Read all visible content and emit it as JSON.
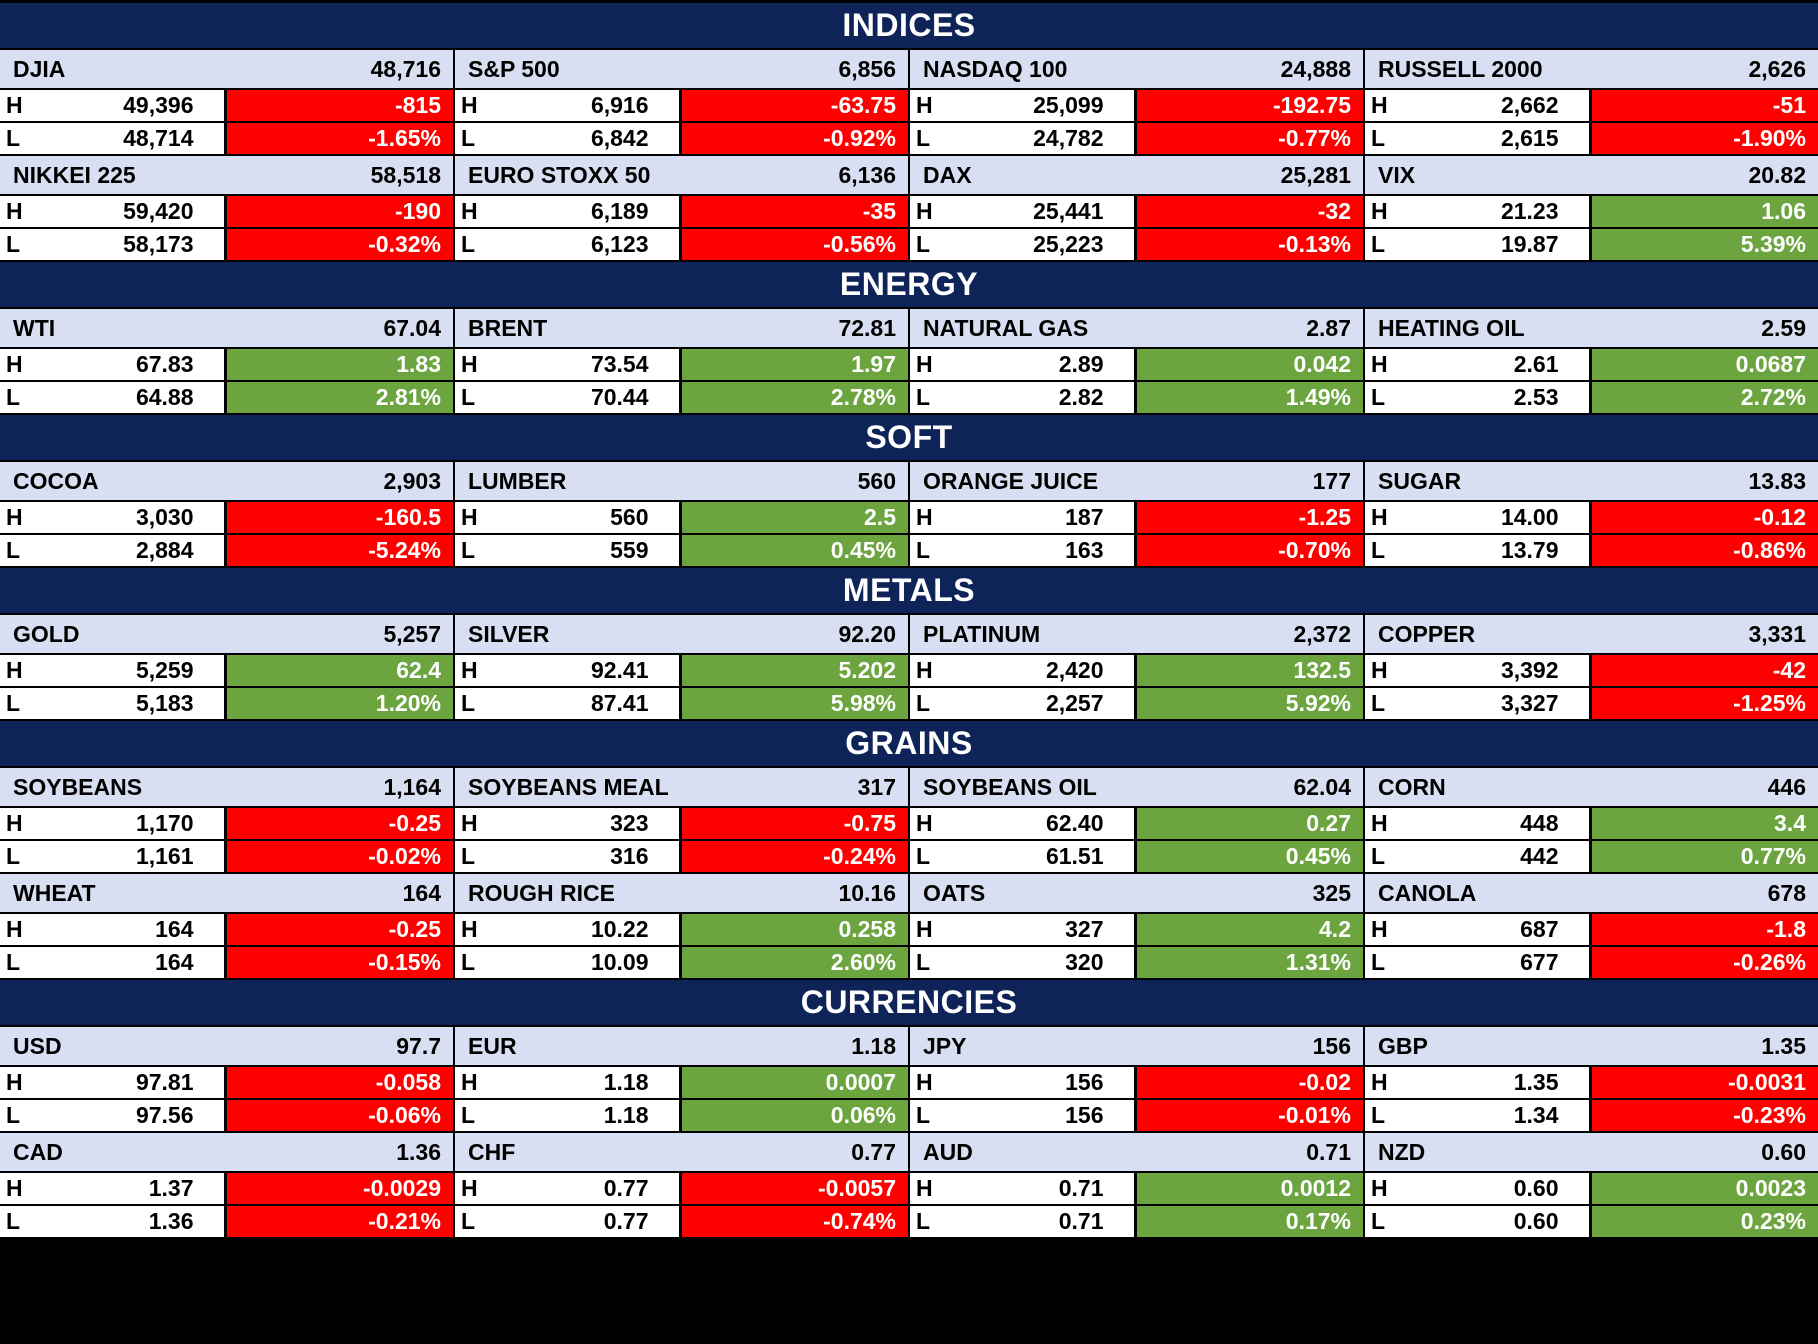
{
  "colors": {
    "section_header_bg": "#0E2357",
    "instrument_header_bg": "#D9DFF2",
    "up_green": "#6CA540",
    "down_red": "#FF0000",
    "cell_bg": "#FFFFFF",
    "grid_line": "#000000"
  },
  "labels": {
    "high": "H",
    "low": "L"
  },
  "sections": [
    {
      "title": "INDICES",
      "rows": [
        [
          {
            "name": "DJIA",
            "last": "48,716",
            "high": "49,396",
            "low": "48,714",
            "change": "-815",
            "change_pct": "-1.65%",
            "direction": "down"
          },
          {
            "name": "S&P 500",
            "last": "6,856",
            "high": "6,916",
            "low": "6,842",
            "change": "-63.75",
            "change_pct": "-0.92%",
            "direction": "down"
          },
          {
            "name": "NASDAQ 100",
            "last": "24,888",
            "high": "25,099",
            "low": "24,782",
            "change": "-192.75",
            "change_pct": "-0.77%",
            "direction": "down"
          },
          {
            "name": "RUSSELL 2000",
            "last": "2,626",
            "high": "2,662",
            "low": "2,615",
            "change": "-51",
            "change_pct": "-1.90%",
            "direction": "down"
          }
        ],
        [
          {
            "name": "NIKKEI 225",
            "last": "58,518",
            "high": "59,420",
            "low": "58,173",
            "change": "-190",
            "change_pct": "-0.32%",
            "direction": "down"
          },
          {
            "name": "EURO STOXX 50",
            "last": "6,136",
            "high": "6,189",
            "low": "6,123",
            "change": "-35",
            "change_pct": "-0.56%",
            "direction": "down"
          },
          {
            "name": "DAX",
            "last": "25,281",
            "high": "25,441",
            "low": "25,223",
            "change": "-32",
            "change_pct": "-0.13%",
            "direction": "down"
          },
          {
            "name": "VIX",
            "last": "20.82",
            "high": "21.23",
            "low": "19.87",
            "change": "1.06",
            "change_pct": "5.39%",
            "direction": "up"
          }
        ]
      ]
    },
    {
      "title": "ENERGY",
      "rows": [
        [
          {
            "name": "WTI",
            "last": "67.04",
            "high": "67.83",
            "low": "64.88",
            "change": "1.83",
            "change_pct": "2.81%",
            "direction": "up"
          },
          {
            "name": "BRENT",
            "last": "72.81",
            "high": "73.54",
            "low": "70.44",
            "change": "1.97",
            "change_pct": "2.78%",
            "direction": "up"
          },
          {
            "name": "NATURAL GAS",
            "last": "2.87",
            "high": "2.89",
            "low": "2.82",
            "change": "0.042",
            "change_pct": "1.49%",
            "direction": "up"
          },
          {
            "name": "HEATING OIL",
            "last": "2.59",
            "high": "2.61",
            "low": "2.53",
            "change": "0.0687",
            "change_pct": "2.72%",
            "direction": "up"
          }
        ]
      ]
    },
    {
      "title": "SOFT",
      "rows": [
        [
          {
            "name": "COCOA",
            "last": "2,903",
            "high": "3,030",
            "low": "2,884",
            "change": "-160.5",
            "change_pct": "-5.24%",
            "direction": "down"
          },
          {
            "name": "LUMBER",
            "last": "560",
            "high": "560",
            "low": "559",
            "change": "2.5",
            "change_pct": "0.45%",
            "direction": "up"
          },
          {
            "name": "ORANGE JUICE",
            "last": "177",
            "high": "187",
            "low": "163",
            "change": "-1.25",
            "change_pct": "-0.70%",
            "direction": "down"
          },
          {
            "name": "SUGAR",
            "last": "13.83",
            "high": "14.00",
            "low": "13.79",
            "change": "-0.12",
            "change_pct": "-0.86%",
            "direction": "down"
          }
        ]
      ]
    },
    {
      "title": "METALS",
      "rows": [
        [
          {
            "name": "GOLD",
            "last": "5,257",
            "high": "5,259",
            "low": "5,183",
            "change": "62.4",
            "change_pct": "1.20%",
            "direction": "up"
          },
          {
            "name": "SILVER",
            "last": "92.20",
            "high": "92.41",
            "low": "87.41",
            "change": "5.202",
            "change_pct": "5.98%",
            "direction": "up"
          },
          {
            "name": "PLATINUM",
            "last": "2,372",
            "high": "2,420",
            "low": "2,257",
            "change": "132.5",
            "change_pct": "5.92%",
            "direction": "up"
          },
          {
            "name": "COPPER",
            "last": "3,331",
            "high": "3,392",
            "low": "3,327",
            "change": "-42",
            "change_pct": "-1.25%",
            "direction": "down"
          }
        ]
      ]
    },
    {
      "title": "GRAINS",
      "rows": [
        [
          {
            "name": "SOYBEANS",
            "last": "1,164",
            "high": "1,170",
            "low": "1,161",
            "change": "-0.25",
            "change_pct": "-0.02%",
            "direction": "down"
          },
          {
            "name": "SOYBEANS MEAL",
            "last": "317",
            "high": "323",
            "low": "316",
            "change": "-0.75",
            "change_pct": "-0.24%",
            "direction": "down"
          },
          {
            "name": "SOYBEANS OIL",
            "last": "62.04",
            "high": "62.40",
            "low": "61.51",
            "change": "0.27",
            "change_pct": "0.45%",
            "direction": "up"
          },
          {
            "name": "CORN",
            "last": "446",
            "high": "448",
            "low": "442",
            "change": "3.4",
            "change_pct": "0.77%",
            "direction": "up"
          }
        ],
        [
          {
            "name": "WHEAT",
            "last": "164",
            "high": "164",
            "low": "164",
            "change": "-0.25",
            "change_pct": "-0.15%",
            "direction": "down"
          },
          {
            "name": "ROUGH RICE",
            "last": "10.16",
            "high": "10.22",
            "low": "10.09",
            "change": "0.258",
            "change_pct": "2.60%",
            "direction": "up"
          },
          {
            "name": "OATS",
            "last": "325",
            "high": "327",
            "low": "320",
            "change": "4.2",
            "change_pct": "1.31%",
            "direction": "up"
          },
          {
            "name": "CANOLA",
            "last": "678",
            "high": "687",
            "low": "677",
            "change": "-1.8",
            "change_pct": "-0.26%",
            "direction": "down"
          }
        ]
      ]
    },
    {
      "title": "CURRENCIES",
      "rows": [
        [
          {
            "name": "USD",
            "last": "97.7",
            "high": "97.81",
            "low": "97.56",
            "change": "-0.058",
            "change_pct": "-0.06%",
            "direction": "down"
          },
          {
            "name": "EUR",
            "last": "1.18",
            "high": "1.18",
            "low": "1.18",
            "change": "0.0007",
            "change_pct": "0.06%",
            "direction": "up"
          },
          {
            "name": "JPY",
            "last": "156",
            "high": "156",
            "low": "156",
            "change": "-0.02",
            "change_pct": "-0.01%",
            "direction": "down"
          },
          {
            "name": "GBP",
            "last": "1.35",
            "high": "1.35",
            "low": "1.34",
            "change": "-0.0031",
            "change_pct": "-0.23%",
            "direction": "down"
          }
        ],
        [
          {
            "name": "CAD",
            "last": "1.36",
            "high": "1.37",
            "low": "1.36",
            "change": "-0.0029",
            "change_pct": "-0.21%",
            "direction": "down"
          },
          {
            "name": "CHF",
            "last": "0.77",
            "high": "0.77",
            "low": "0.77",
            "change": "-0.0057",
            "change_pct": "-0.74%",
            "direction": "down"
          },
          {
            "name": "AUD",
            "last": "0.71",
            "high": "0.71",
            "low": "0.71",
            "change": "0.0012",
            "change_pct": "0.17%",
            "direction": "up"
          },
          {
            "name": "NZD",
            "last": "0.60",
            "high": "0.60",
            "low": "0.60",
            "change": "0.0023",
            "change_pct": "0.23%",
            "direction": "up"
          }
        ]
      ]
    }
  ]
}
